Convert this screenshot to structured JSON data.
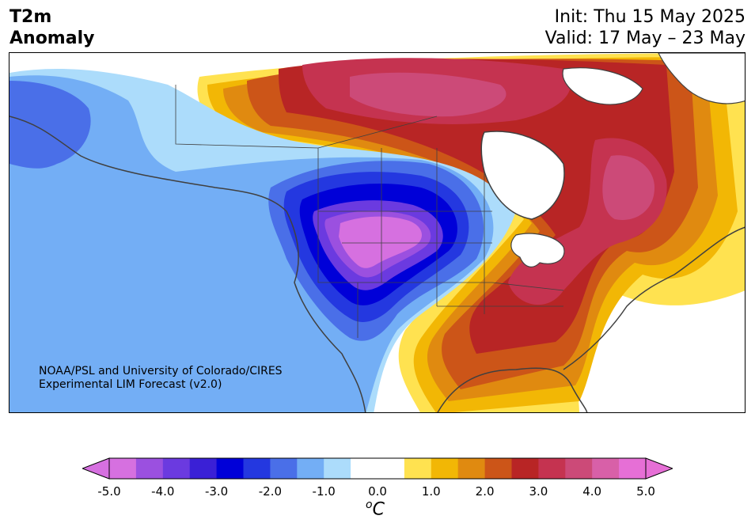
{
  "header": {
    "title_line1": "T2m",
    "title_line2": "Anomaly",
    "init": "Init: Thu 15 May 2025",
    "valid": "Valid: 17 May – 23 May"
  },
  "credit": {
    "line1": "NOAA/PSL and University of Colorado/CIRES",
    "line2": "Experimental LIM Forecast (v2.0)"
  },
  "colorbar": {
    "unit": "C",
    "unit_sup": "o",
    "ticks": [
      "-5.0",
      "-4.0",
      "-3.0",
      "-2.0",
      "-1.0",
      "0.0",
      "1.0",
      "2.0",
      "3.0",
      "4.0",
      "5.0"
    ],
    "under_color": "#d670e0",
    "over_color": "#e66fd6",
    "colors": [
      "#d670e0",
      "#9b50e0",
      "#6b3ae0",
      "#3a20d6",
      "#0000d8",
      "#2438e0",
      "#4a6fe8",
      "#73aef5",
      "#acdcfb",
      "#ffffff",
      "#ffffff",
      "#ffe250",
      "#f2b705",
      "#e08a10",
      "#cc5518",
      "#b82525",
      "#c53350",
      "#cc4a78",
      "#d860a8",
      "#e66fd6"
    ]
  },
  "map": {
    "colors": {
      "deep_purple": "#d670e0",
      "purple": "#9b50e0",
      "violet": "#6b3ae0",
      "dark_blue": "#0000d8",
      "blue": "#2438e0",
      "mid_blue": "#4a6fe8",
      "light_blue": "#73aef5",
      "pale_blue": "#acdcfb",
      "yellow": "#ffe250",
      "gold": "#f2b705",
      "orange": "#e08a10",
      "burnt": "#cc5518",
      "red": "#b82525",
      "crimson": "#c53350",
      "pink": "#cc4a78"
    }
  }
}
